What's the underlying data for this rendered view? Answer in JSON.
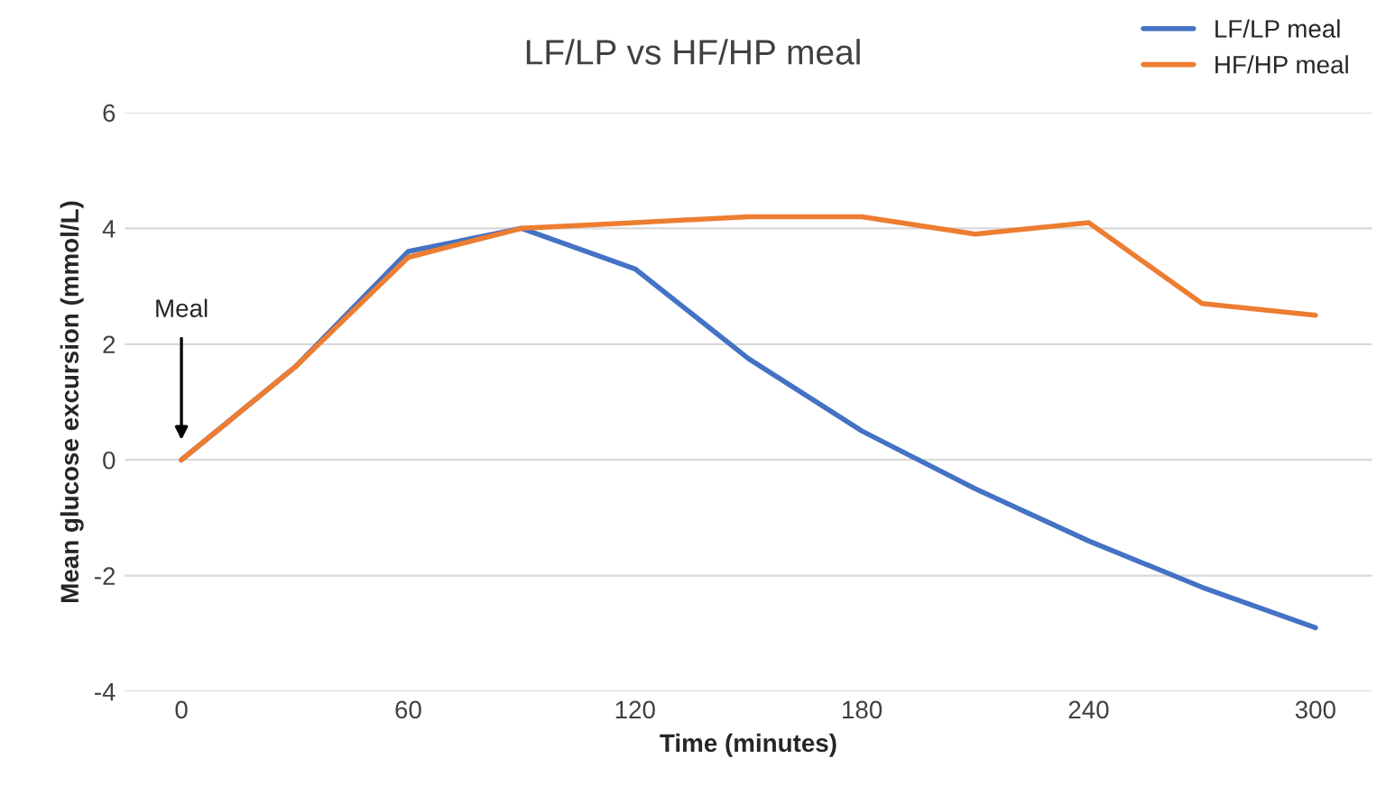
{
  "chart_data": {
    "type": "line",
    "title": "LF/LP vs HF/HP meal",
    "xlabel": "Time (minutes)",
    "ylabel": "Mean glucose excursion (mmol/L)",
    "x": [
      0,
      30,
      60,
      90,
      120,
      150,
      180,
      210,
      240,
      270,
      300
    ],
    "series": [
      {
        "name": "LF/LP meal",
        "color": "#4472c4",
        "values": [
          0,
          1.6,
          3.6,
          4.0,
          3.3,
          1.75,
          0.5,
          -0.5,
          -1.4,
          -2.2,
          -2.9
        ]
      },
      {
        "name": "HF/HP meal",
        "color": "#ed7d31",
        "values": [
          0,
          1.6,
          3.5,
          4.0,
          4.1,
          4.2,
          4.2,
          3.9,
          4.1,
          2.7,
          2.5
        ]
      }
    ],
    "xlim": [
      -15,
      315
    ],
    "xticks": [
      0,
      60,
      120,
      180,
      240,
      300
    ],
    "ylim": [
      -4,
      6
    ],
    "yticks": [
      -4,
      -2,
      0,
      2,
      4,
      6
    ],
    "grid": "y",
    "legend": "top right",
    "marker": "none",
    "line_style": "solid",
    "annotations": [
      "Meal"
    ]
  }
}
